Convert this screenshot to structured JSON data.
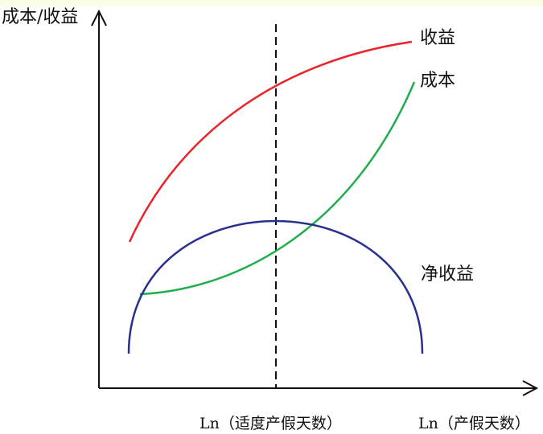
{
  "diagram": {
    "y_axis_label": "成本/收益",
    "x_axis_label": "Ln（产假天数）",
    "optimum_label": "Ln（适度产假天数）",
    "curves": {
      "revenue": {
        "label": "收益",
        "color": "#e8252a"
      },
      "cost": {
        "label": "成本",
        "color": "#1fae4b"
      },
      "net_revenue": {
        "label": "净收益",
        "color": "#28308f"
      }
    },
    "optimum_line_style": "dashed",
    "axis_color": "#111111",
    "top_band_color": "#fdfbe9"
  }
}
